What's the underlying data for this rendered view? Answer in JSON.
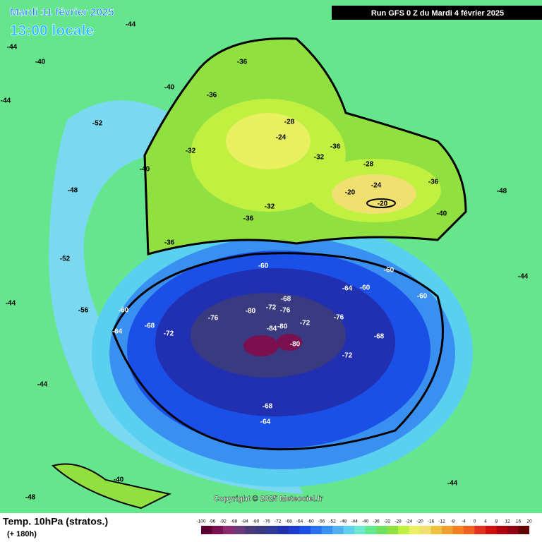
{
  "header": {
    "title": "Mardi 11 février 2025",
    "subtitle": "13:00 locale",
    "run": "Run GFS 0 Z du Mardi 4 février 2025"
  },
  "footer": {
    "title": "Temp. 10hPa (stratos.)",
    "lead": "(+ 180h)",
    "copyright": "Copyright © 2025 Meteociel.fr"
  },
  "legend": {
    "values": [
      -100,
      -96,
      -92,
      -88,
      -84,
      -80,
      -76,
      -72,
      -68,
      -64,
      -60,
      -56,
      -52,
      -48,
      -44,
      -40,
      -36,
      -32,
      -28,
      -24,
      -20,
      -16,
      -12,
      -8,
      -4,
      0,
      4,
      8,
      12,
      16,
      20
    ],
    "colors": [
      "#5a0030",
      "#7a1050",
      "#8a2a70",
      "#6a3a7a",
      "#4a3a78",
      "#3a3a80",
      "#303a98",
      "#2030b0",
      "#1a3ad0",
      "#1a50e8",
      "#2a70f0",
      "#3a90f0",
      "#50b0f0",
      "#60d0f0",
      "#70e8d0",
      "#62e88e",
      "#70e060",
      "#90e040",
      "#c0f040",
      "#e8f060",
      "#f0e070",
      "#f0c040",
      "#f0a030",
      "#f08020",
      "#f06020",
      "#e03020",
      "#d01010",
      "#b00010",
      "#900010",
      "#600000"
    ]
  },
  "contour_labels": [
    -44,
    -44,
    -40,
    -44,
    -40,
    -36,
    -36,
    -32,
    -28,
    -24,
    -32,
    -28,
    -20,
    -24,
    -20,
    -36,
    -32,
    -36,
    -36,
    -40,
    -52,
    -48,
    -52,
    -56,
    -60,
    -64,
    -68,
    -72,
    -76,
    -80,
    -72,
    -76,
    -68,
    -80,
    -84,
    -80,
    -72,
    -76,
    -64,
    -60,
    -60,
    -60,
    -68,
    -72,
    -68,
    -64,
    -60,
    -44,
    -48,
    -44,
    -40,
    -48,
    -44,
    -44,
    -36,
    -40
  ]
}
